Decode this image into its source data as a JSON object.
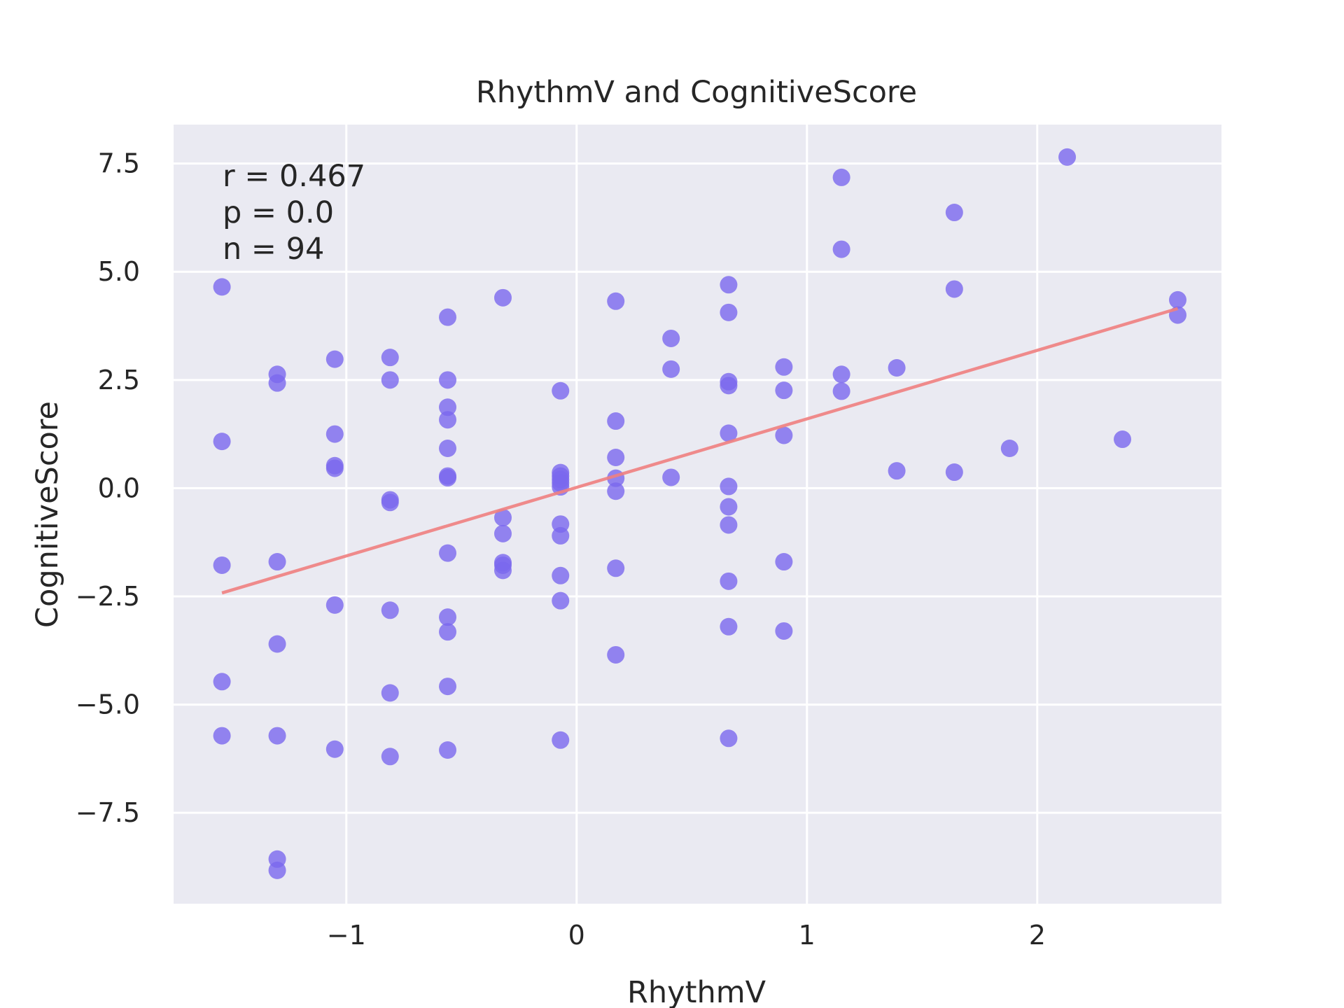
{
  "chart_data": {
    "type": "scatter",
    "title": "RhythmV and CognitiveScore",
    "xlabel": "RhythmV",
    "ylabel": "CognitiveScore",
    "xlim": [
      -1.75,
      2.8
    ],
    "ylim": [
      -9.6,
      8.4
    ],
    "xticks": [
      -1,
      0,
      1,
      2
    ],
    "xtick_labels": [
      "−1",
      "0",
      "1",
      "2"
    ],
    "yticks": [
      -7.5,
      -5.0,
      -2.5,
      0.0,
      2.5,
      5.0,
      7.5
    ],
    "ytick_labels": [
      "−7.5",
      "−5.0",
      "−2.5",
      "0.0",
      "2.5",
      "5.0",
      "7.5"
    ],
    "grid": true,
    "annotations": [
      "r = 0.467",
      "p = 0.0",
      "n = 94"
    ],
    "point_color": "#7b68ee",
    "line_color": "#f08080",
    "background_color": "#eaeaf2",
    "fit_line": {
      "x": [
        -1.54,
        2.61
      ],
      "y": [
        -2.42,
        4.15
      ]
    },
    "points": [
      [
        -1.54,
        4.65
      ],
      [
        -1.54,
        1.08
      ],
      [
        -1.54,
        -1.78
      ],
      [
        -1.54,
        -4.47
      ],
      [
        -1.54,
        -5.72
      ],
      [
        -1.3,
        2.63
      ],
      [
        -1.3,
        2.43
      ],
      [
        -1.3,
        -1.7
      ],
      [
        -1.3,
        -3.6
      ],
      [
        -1.3,
        -5.72
      ],
      [
        -1.3,
        -8.57
      ],
      [
        -1.3,
        -8.83
      ],
      [
        -1.05,
        2.98
      ],
      [
        -1.05,
        1.25
      ],
      [
        -1.05,
        0.52
      ],
      [
        -1.05,
        0.46
      ],
      [
        -1.05,
        -2.7
      ],
      [
        -1.05,
        -6.03
      ],
      [
        -0.81,
        3.02
      ],
      [
        -0.81,
        2.5
      ],
      [
        -0.81,
        -0.27
      ],
      [
        -0.81,
        -0.33
      ],
      [
        -0.81,
        -2.82
      ],
      [
        -0.81,
        -4.73
      ],
      [
        -0.81,
        -6.2
      ],
      [
        -0.56,
        3.95
      ],
      [
        -0.56,
        2.5
      ],
      [
        -0.56,
        1.87
      ],
      [
        -0.56,
        1.58
      ],
      [
        -0.56,
        0.92
      ],
      [
        -0.56,
        0.28
      ],
      [
        -0.56,
        0.24
      ],
      [
        -0.56,
        -1.5
      ],
      [
        -0.56,
        -2.98
      ],
      [
        -0.56,
        -3.32
      ],
      [
        -0.56,
        -4.58
      ],
      [
        -0.56,
        -6.05
      ],
      [
        -0.32,
        4.4
      ],
      [
        -0.32,
        -0.68
      ],
      [
        -0.32,
        -1.05
      ],
      [
        -0.32,
        -1.72
      ],
      [
        -0.32,
        -1.78
      ],
      [
        -0.32,
        -1.9
      ],
      [
        -0.07,
        2.25
      ],
      [
        -0.07,
        0.36
      ],
      [
        -0.07,
        0.28
      ],
      [
        -0.07,
        0.2
      ],
      [
        -0.07,
        0.12
      ],
      [
        -0.07,
        0.03
      ],
      [
        -0.07,
        -0.83
      ],
      [
        -0.07,
        -1.1
      ],
      [
        -0.07,
        -2.02
      ],
      [
        -0.07,
        -2.6
      ],
      [
        -0.07,
        -5.82
      ],
      [
        0.17,
        4.32
      ],
      [
        0.17,
        1.55
      ],
      [
        0.17,
        0.71
      ],
      [
        0.17,
        0.23
      ],
      [
        0.17,
        -0.07
      ],
      [
        0.17,
        -1.85
      ],
      [
        0.17,
        -3.85
      ],
      [
        0.41,
        3.46
      ],
      [
        0.41,
        2.75
      ],
      [
        0.41,
        0.25
      ],
      [
        0.66,
        4.7
      ],
      [
        0.66,
        4.06
      ],
      [
        0.66,
        2.46
      ],
      [
        0.66,
        2.37
      ],
      [
        0.66,
        1.27
      ],
      [
        0.66,
        0.04
      ],
      [
        0.66,
        -0.43
      ],
      [
        0.66,
        -0.85
      ],
      [
        0.66,
        -2.15
      ],
      [
        0.66,
        -3.2
      ],
      [
        0.66,
        -5.78
      ],
      [
        0.9,
        2.8
      ],
      [
        0.9,
        2.26
      ],
      [
        0.9,
        1.22
      ],
      [
        0.9,
        -1.7
      ],
      [
        0.9,
        -3.3
      ],
      [
        1.15,
        7.18
      ],
      [
        1.15,
        5.52
      ],
      [
        1.15,
        2.63
      ],
      [
        1.15,
        2.24
      ],
      [
        1.39,
        2.78
      ],
      [
        1.39,
        0.4
      ],
      [
        1.64,
        6.37
      ],
      [
        1.64,
        4.6
      ],
      [
        1.64,
        0.37
      ],
      [
        1.88,
        0.92
      ],
      [
        2.13,
        7.65
      ],
      [
        2.37,
        1.13
      ],
      [
        2.61,
        4.35
      ],
      [
        2.61,
        4.0
      ]
    ]
  }
}
